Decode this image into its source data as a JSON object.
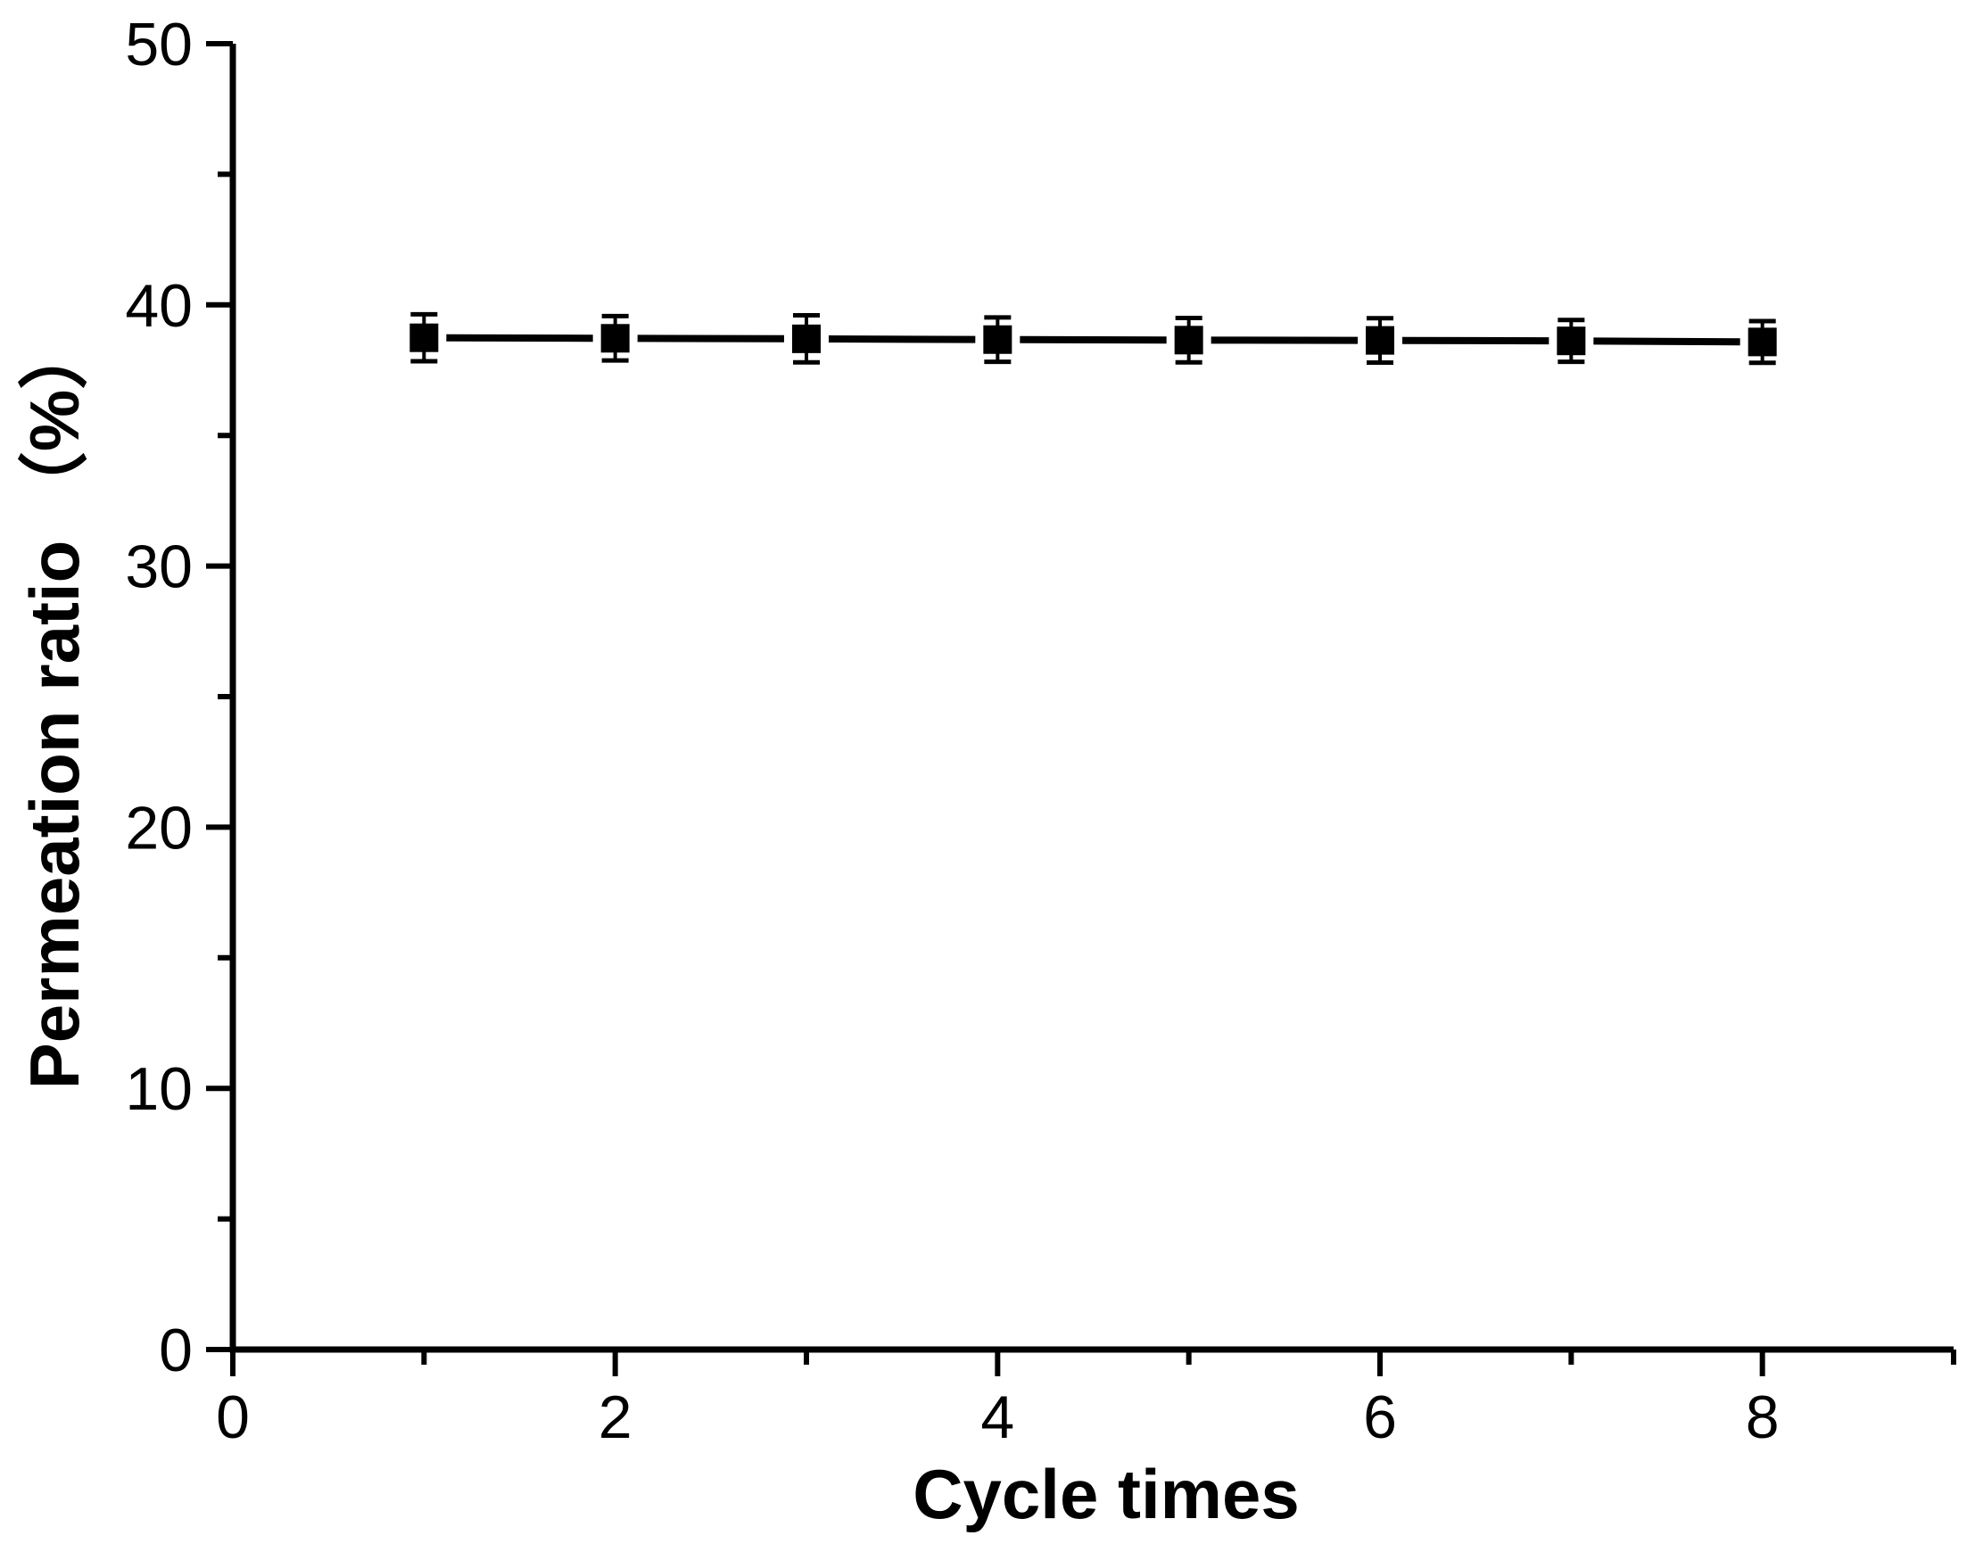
{
  "figure": {
    "background": "#ffffff",
    "foreground": "#000000"
  },
  "chart_data": {
    "type": "line",
    "title": "",
    "xlabel": "Cycle times",
    "ylabel": "Permeation ratio （%）",
    "x": [
      1,
      2,
      3,
      4,
      5,
      6,
      7,
      8
    ],
    "series": [
      {
        "name": "Permeation ratio",
        "marker": "filled-square",
        "color": "#000000",
        "values": [
          38.74,
          38.72,
          38.7,
          38.67,
          38.65,
          38.64,
          38.62,
          38.58
        ],
        "errors": [
          0.9,
          0.85,
          0.9,
          0.85,
          0.85,
          0.85,
          0.8,
          0.8
        ]
      }
    ],
    "xlim": [
      0,
      9
    ],
    "ylim": [
      0,
      50
    ],
    "x_major_ticks": [
      0,
      2,
      4,
      6,
      8
    ],
    "x_minor_ticks": [
      1,
      3,
      5,
      7,
      9
    ],
    "y_major_ticks": [
      0,
      10,
      20,
      30,
      40,
      50
    ],
    "y_minor_ticks": [
      5,
      15,
      25,
      35,
      45
    ],
    "grid": false,
    "legend": null,
    "error_bars": true,
    "line_style": "solid"
  }
}
